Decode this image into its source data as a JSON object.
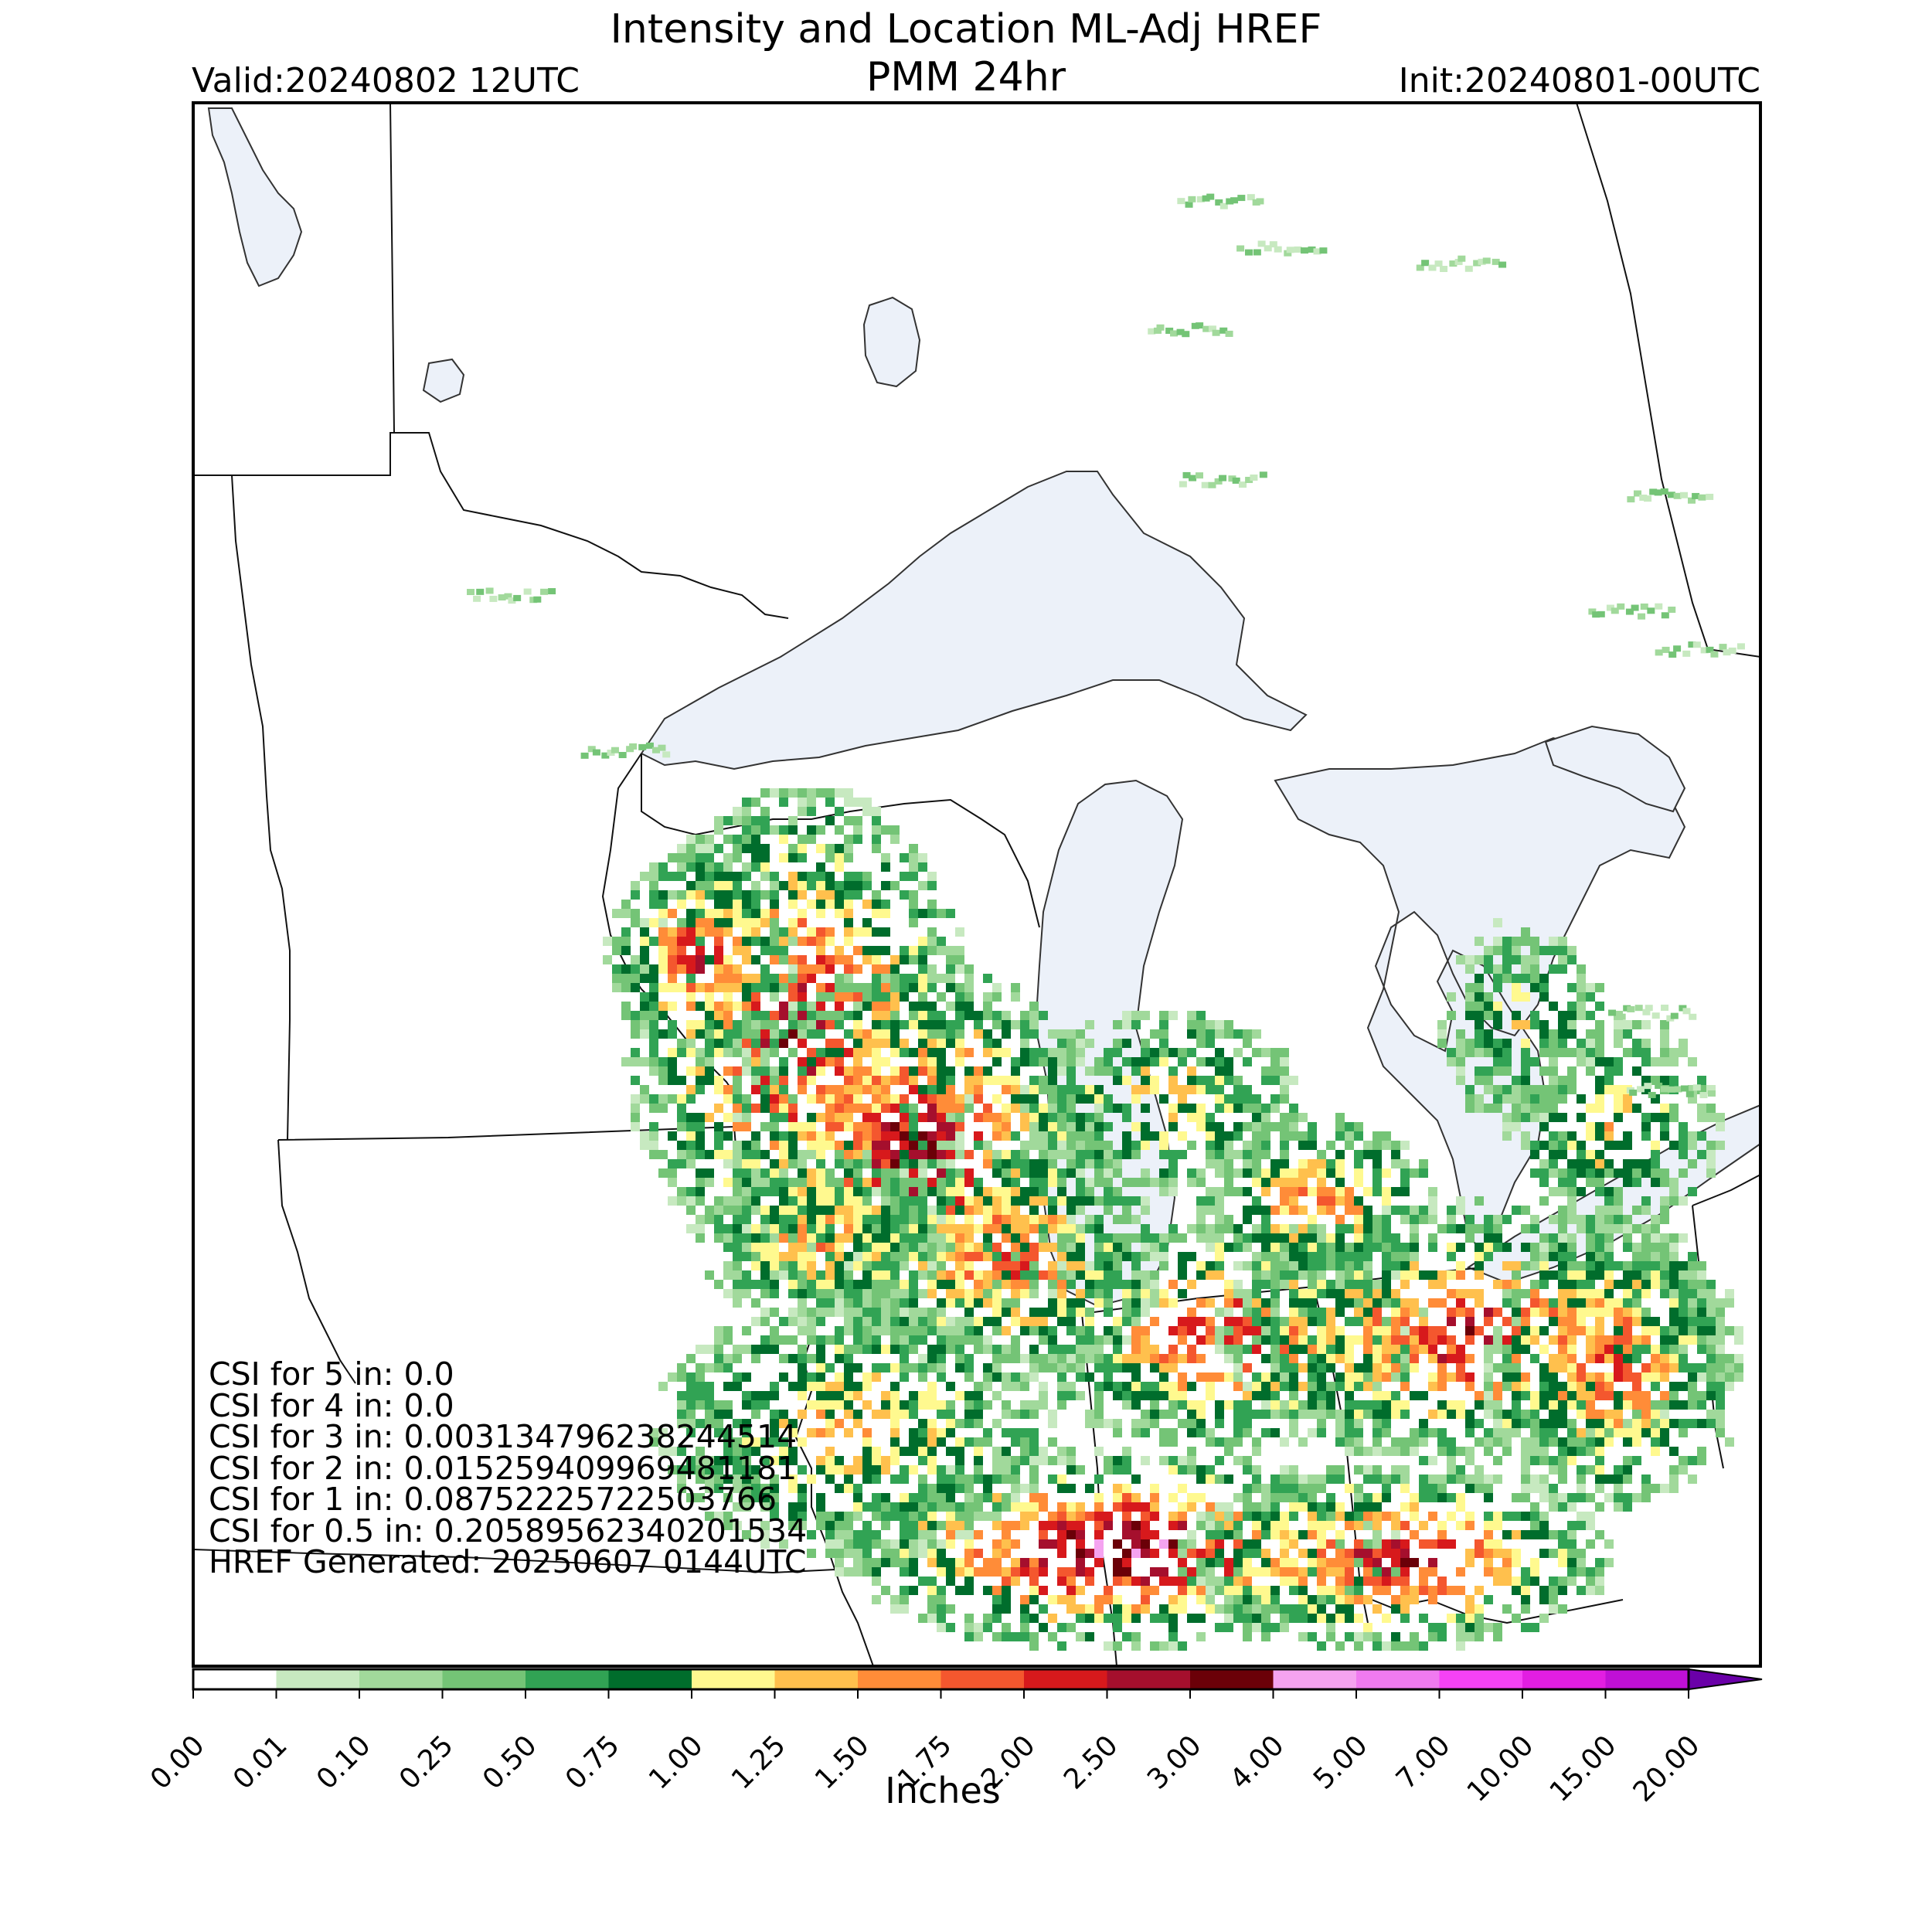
{
  "header": {
    "title_line1": "Intensity and Location ML-Adj HREF",
    "title_line2": "PMM 24hr",
    "valid": "Valid:20240802 12UTC",
    "init": "Init:20240801-00UTC"
  },
  "stats": [
    "CSI for 5 in: 0.0",
    "CSI for 4 in: 0.0",
    "CSI for 3 in: 0.003134796238244514",
    "CSI for 2 in: 0.015259409969481181",
    "CSI for 1 in: 0.08752225722503766",
    "CSI for 0.5 in: 0.20589562340201534",
    "HREF Generated: 20250607 0144UTC"
  ],
  "colorbar": {
    "label": "Inches",
    "ticks": [
      "0.00",
      "0.01",
      "0.10",
      "0.25",
      "0.50",
      "0.75",
      "1.00",
      "1.25",
      "1.50",
      "1.75",
      "2.00",
      "2.50",
      "3.00",
      "4.00",
      "5.00",
      "7.00",
      "10.00",
      "15.00",
      "20.00"
    ],
    "colors": [
      "#ffffff",
      "#c7e9c0",
      "#a1d99b",
      "#74c476",
      "#31a354",
      "#006d2c",
      "#fff98f",
      "#ffc04d",
      "#ff8c38",
      "#f4572e",
      "#d7191c",
      "#a50f2d",
      "#6b0008",
      "#f5a3f0",
      "#f07af0",
      "#f542f5",
      "#e21ee2",
      "#c010d6",
      "#8a06c8"
    ],
    "extend_color": "#6a00a8"
  },
  "map": {
    "water_color": "#ecf1f9",
    "border_color": "#000000",
    "region": "Upper Midwest / Great Lakes"
  }
}
